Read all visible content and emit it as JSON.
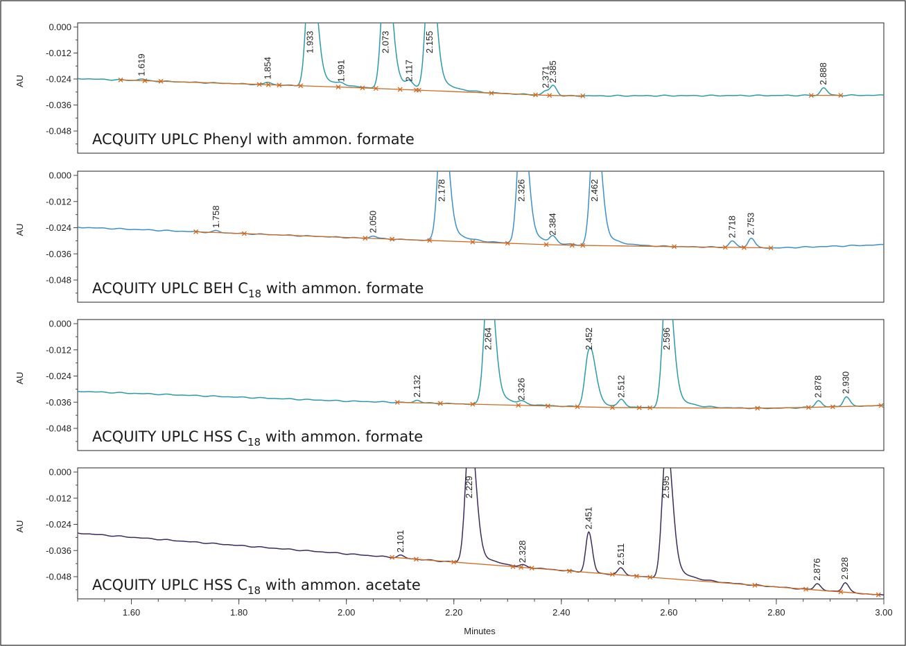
{
  "colors": {
    "trace_1": "#2a9aa8",
    "trace_2": "#3d8ec9",
    "trace_3": "#2a9aa8",
    "trace_4": "#3a2a5c",
    "integration": "#d2691e"
  },
  "chart_data": [
    {
      "type": "line",
      "title": "ACQUITY UPLC Phenyl with ammon. formate",
      "ylabel": "AU",
      "xlabel": "",
      "xlim": [
        1.5,
        3.0
      ],
      "ylim": [
        -0.06,
        0.001
      ],
      "yticks": [
        "0.000",
        "-0.012",
        "-0.024",
        "-0.036",
        "-0.048"
      ],
      "baseline": {
        "x": [
          1.5,
          2.0,
          2.4,
          3.0
        ],
        "y": [
          -0.0238,
          -0.0278,
          -0.0318,
          -0.0315
        ]
      },
      "peaks": [
        {
          "rt": 1.619,
          "label": "1.619",
          "height": 0.0008
        },
        {
          "rt": 1.854,
          "label": "1.854",
          "height": 0.0012
        },
        {
          "rt": 1.933,
          "label": "1.933",
          "height": 0.06
        },
        {
          "rt": 1.991,
          "label": "1.991",
          "height": 0.001
        },
        {
          "rt": 2.073,
          "label": "2.073",
          "height": 0.06
        },
        {
          "rt": 2.117,
          "label": "2.117",
          "height": 0.0025
        },
        {
          "rt": 2.155,
          "label": "2.155",
          "height": 0.06
        },
        {
          "rt": 2.371,
          "label": "2.371",
          "height": 0.002
        },
        {
          "rt": 2.385,
          "label": "2.385",
          "height": 0.0045
        },
        {
          "rt": 2.888,
          "label": "2.888",
          "height": 0.0035
        }
      ],
      "markers": [
        1.58,
        1.625,
        1.655,
        1.838,
        1.855,
        1.875,
        1.915,
        1.985,
        2.03,
        2.055,
        2.1,
        2.13,
        2.135,
        2.27,
        2.352,
        2.378,
        2.44,
        2.865,
        2.92
      ]
    },
    {
      "type": "line",
      "title": "ACQUITY UPLC BEH C",
      "title_sub": "18",
      "title_suffix": " with ammon. formate",
      "ylabel": "AU",
      "xlabel": "",
      "xlim": [
        1.5,
        3.0
      ],
      "ylim": [
        -0.06,
        0.001
      ],
      "yticks": [
        "0.000",
        "-0.012",
        "-0.024",
        "-0.036",
        "-0.048"
      ],
      "baseline": {
        "x": [
          1.5,
          2.0,
          2.4,
          2.8,
          3.0
        ],
        "y": [
          -0.0238,
          -0.0285,
          -0.032,
          -0.0333,
          -0.0318
        ]
      },
      "peaks": [
        {
          "rt": 1.758,
          "label": "1.758",
          "height": 0.0008
        },
        {
          "rt": 2.05,
          "label": "2.050",
          "height": 0.0012
        },
        {
          "rt": 2.178,
          "label": "2.178",
          "height": 0.06
        },
        {
          "rt": 2.326,
          "label": "2.326",
          "height": 0.06
        },
        {
          "rt": 2.384,
          "label": "2.384",
          "height": 0.003
        },
        {
          "rt": 2.462,
          "label": "2.462",
          "height": 0.06
        },
        {
          "rt": 2.718,
          "label": "2.718",
          "height": 0.003
        },
        {
          "rt": 2.753,
          "label": "2.753",
          "height": 0.0045
        }
      ],
      "markers": [
        1.72,
        1.81,
        2.035,
        2.085,
        2.155,
        2.235,
        2.3,
        2.372,
        2.42,
        2.44,
        2.61,
        2.705,
        2.74,
        2.79
      ]
    },
    {
      "type": "line",
      "title": "ACQUITY UPLC HSS C",
      "title_sub": "18",
      "title_suffix": " with ammon. formate",
      "ylabel": "AU",
      "xlabel": "",
      "xlim": [
        1.5,
        3.0
      ],
      "ylim": [
        -0.06,
        0.001
      ],
      "yticks": [
        "0.000",
        "-0.012",
        "-0.024",
        "-0.036",
        "-0.048"
      ],
      "baseline": {
        "x": [
          1.5,
          2.0,
          2.5,
          2.8,
          3.0
        ],
        "y": [
          -0.031,
          -0.0355,
          -0.0385,
          -0.0388,
          -0.0375
        ]
      },
      "peaks": [
        {
          "rt": 2.132,
          "label": "2.132",
          "height": 0.0012
        },
        {
          "rt": 2.264,
          "label": "2.264",
          "height": 0.06
        },
        {
          "rt": 2.326,
          "label": "2.326",
          "height": 0.001
        },
        {
          "rt": 2.452,
          "label": "2.452",
          "height": 0.0265
        },
        {
          "rt": 2.512,
          "label": "2.512",
          "height": 0.0033
        },
        {
          "rt": 2.596,
          "label": "2.596",
          "height": 0.06
        },
        {
          "rt": 2.878,
          "label": "2.878",
          "height": 0.003
        },
        {
          "rt": 2.93,
          "label": "2.930",
          "height": 0.0045
        }
      ],
      "markers": [
        2.095,
        2.175,
        2.235,
        2.32,
        2.375,
        2.43,
        2.495,
        2.545,
        2.565,
        2.765,
        2.86,
        2.905,
        2.995
      ]
    },
    {
      "type": "line",
      "title": "ACQUITY UPLC HSS C",
      "title_sub": "18",
      "title_suffix": " with ammon. acetate",
      "ylabel": "AU",
      "xlabel": "Minutes",
      "xlim": [
        1.5,
        3.0
      ],
      "ylim": [
        -0.057,
        0.001
      ],
      "xticks": [
        "1.60",
        "1.80",
        "2.00",
        "2.20",
        "2.40",
        "2.60",
        "2.80",
        "3.00"
      ],
      "yticks": [
        "0.000",
        "-0.012",
        "-0.024",
        "-0.036",
        "-0.048"
      ],
      "baseline": {
        "x": [
          1.5,
          3.0
        ],
        "y": [
          -0.028,
          -0.0565
        ]
      },
      "peaks": [
        {
          "rt": 2.101,
          "label": "2.101",
          "height": 0.0012
        },
        {
          "rt": 2.229,
          "label": "2.229",
          "height": 0.06
        },
        {
          "rt": 2.328,
          "label": "2.328",
          "height": 0.0008
        },
        {
          "rt": 2.451,
          "label": "2.451",
          "height": 0.0185
        },
        {
          "rt": 2.511,
          "label": "2.511",
          "height": 0.0032
        },
        {
          "rt": 2.595,
          "label": "2.595",
          "height": 0.06
        },
        {
          "rt": 2.876,
          "label": "2.876",
          "height": 0.003
        },
        {
          "rt": 2.928,
          "label": "2.928",
          "height": 0.0045
        }
      ],
      "markers": [
        2.085,
        2.13,
        2.2,
        2.31,
        2.325,
        2.345,
        2.415,
        2.495,
        2.54,
        2.565,
        2.76,
        2.855,
        2.92,
        2.99
      ]
    }
  ]
}
